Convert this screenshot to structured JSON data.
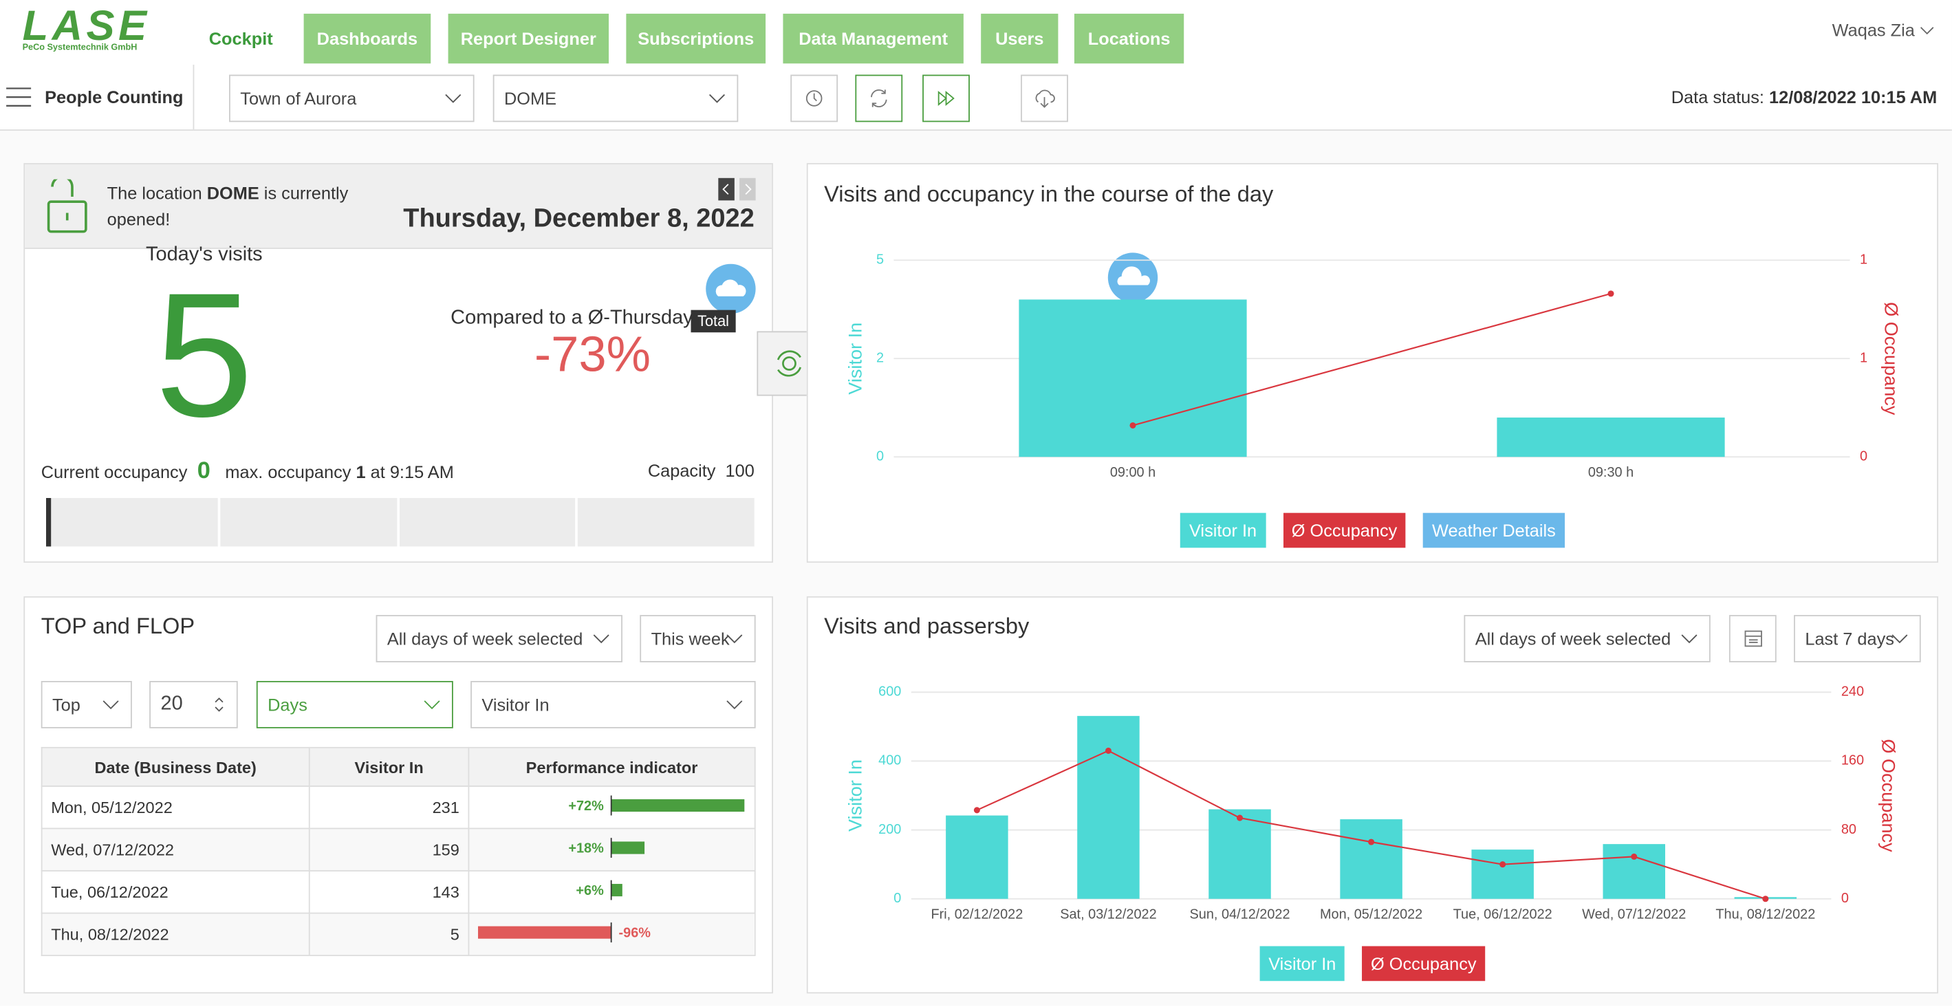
{
  "header": {
    "logo": "LASE",
    "logo_sub": "PeCo Systemtechnik GmbH",
    "tabs": [
      "Cockpit",
      "Dashboards",
      "Report Designer",
      "Subscriptions",
      "Data Management",
      "Users",
      "Locations"
    ],
    "user": "Waqas Zia"
  },
  "toolbar": {
    "module": "People Counting",
    "location": "Town of Aurora",
    "site": "DOME",
    "status_label": "Data status:",
    "status_value": "12/08/2022 10:15 AM"
  },
  "status_card": {
    "message_pre": "The location",
    "message_location": "DOME",
    "message_post": "is currently opened!",
    "date": "Thursday, December 8, 2022",
    "visits_label": "Today's visits",
    "visits": 5,
    "compare_label": "Compared to a Ø-Thursday",
    "compare_badge": "Total",
    "compare_value": "-73%",
    "occupancy_label": "Current occupancy",
    "occupancy": 0,
    "max_label": "max. occupancy",
    "max_value": 1,
    "max_time": "at 9:15 AM",
    "capacity_label": "Capacity",
    "capacity": 100
  },
  "top_flop": {
    "title": "TOP and FLOP",
    "days_filter": "All days of week selected",
    "period": "This week",
    "mode": "Top",
    "count": 20,
    "unit": "Days",
    "metric": "Visitor In",
    "headers": [
      "Date (Business Date)",
      "Visitor In",
      "Performance indicator"
    ],
    "rows": [
      [
        "Mon, 05/12/2022",
        231,
        72
      ],
      [
        "Wed, 07/12/2022",
        159,
        18
      ],
      [
        "Tue, 06/12/2022",
        143,
        6
      ],
      [
        "Thu, 08/12/2022",
        5,
        -96
      ]
    ],
    "indicator_labels": [
      "+72%",
      "+18%",
      "+6%",
      "-96%"
    ]
  },
  "chart_data": [
    {
      "type": "combo",
      "title": "Visits and occupancy in the course of the day",
      "categories": [
        "09:00 h",
        "09:30 h"
      ],
      "series": [
        {
          "name": "Visitor In",
          "type": "bar",
          "color": "#4dd9d5",
          "values": [
            4,
            1
          ]
        },
        {
          "name": "Ø Occupancy",
          "type": "line",
          "axis": "y2",
          "color": "#d9363e",
          "values": [
            0.16,
            0.83
          ]
        }
      ],
      "legend_extra": [
        {
          "name": "Weather Details",
          "color": "#6ab8ea"
        }
      ],
      "y_label": "Visitor In",
      "y2_label": "Ø Occupancy",
      "ylim": [
        0,
        5
      ],
      "yticks": [
        0,
        {
          "value": 2.5,
          "label": "2"
        },
        5
      ],
      "y2lim": [
        0,
        1
      ],
      "y2ticks": [
        0,
        {
          "value": 0.5,
          "label": "1"
        },
        1
      ],
      "grid": true
    },
    {
      "type": "combo",
      "title": "Visits and passersby",
      "filters": [
        "All days of week selected",
        "Last 7 days"
      ],
      "categories": [
        "Fri, 02/12/2022",
        "Sat, 03/12/2022",
        "Sun, 04/12/2022",
        "Mon, 05/12/2022",
        "Tue, 06/12/2022",
        "Wed, 07/12/2022",
        "Thu, 08/12/2022"
      ],
      "series": [
        {
          "name": "Visitor In",
          "type": "bar",
          "color": "#4dd9d5",
          "values": [
            242,
            531,
            260,
            231,
            143,
            159,
            5
          ]
        },
        {
          "name": "Ø Occupancy",
          "type": "line",
          "axis": "y2",
          "color": "#d9363e",
          "values": [
            103,
            172,
            94,
            66,
            40,
            49,
            0
          ]
        }
      ],
      "y_label": "Visitor In",
      "y2_label": "Ø Occupancy",
      "ylim": [
        0,
        600
      ],
      "yticks": [
        0,
        200,
        400,
        600
      ],
      "y2lim": [
        0,
        240
      ],
      "y2ticks": [
        0,
        80,
        160,
        240
      ],
      "grid": true
    }
  ]
}
